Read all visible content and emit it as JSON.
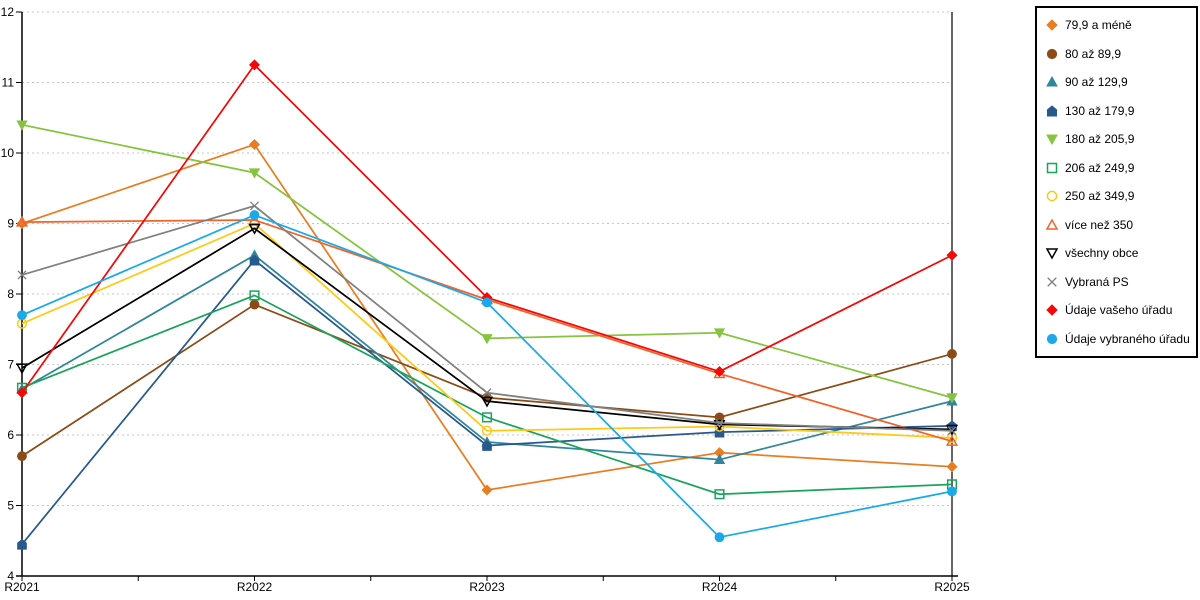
{
  "chart_data": {
    "type": "line",
    "title": "",
    "xlabel": "",
    "ylabel": "",
    "x_categories": [
      "R2021",
      "R2022",
      "R2023",
      "R2024",
      "R2025"
    ],
    "ylim": [
      4,
      12
    ],
    "y_ticks": [
      4,
      5,
      6,
      7,
      8,
      9,
      10,
      11,
      12
    ],
    "grid": "horizontal-dashed",
    "legend_position": "right",
    "series": [
      {
        "name": "79,9 a méně",
        "color": "#E87E23",
        "marker": "diamond",
        "fill": "solid",
        "values": [
          9.0,
          10.12,
          5.22,
          5.75,
          5.55
        ]
      },
      {
        "name": "80 až 89,9",
        "color": "#8C4A17",
        "marker": "circle",
        "fill": "solid",
        "values": [
          5.7,
          7.85,
          6.53,
          6.25,
          7.15
        ]
      },
      {
        "name": "90 až 129,9",
        "color": "#31859C",
        "marker": "triangle-up",
        "fill": "solid",
        "values": [
          6.65,
          8.55,
          5.9,
          5.65,
          6.48
        ]
      },
      {
        "name": "130 až 179,9",
        "color": "#27598E",
        "marker": "pentagon",
        "fill": "solid",
        "values": [
          4.45,
          8.48,
          5.85,
          6.04,
          6.13
        ]
      },
      {
        "name": "180 až 205,9",
        "color": "#86C440",
        "marker": "triangle-down",
        "fill": "solid",
        "values": [
          10.4,
          9.72,
          7.37,
          7.45,
          6.53
        ]
      },
      {
        "name": "206 až 249,9",
        "color": "#18A45A",
        "marker": "square",
        "fill": "open",
        "values": [
          6.67,
          7.98,
          6.25,
          5.16,
          5.3
        ]
      },
      {
        "name": "250 až 349,9",
        "color": "#FFC914",
        "marker": "circle",
        "fill": "open",
        "values": [
          7.58,
          9.0,
          6.06,
          6.12,
          5.96
        ]
      },
      {
        "name": "více než 350",
        "color": "#F2632A",
        "marker": "triangle-up",
        "fill": "open",
        "values": [
          9.02,
          9.05,
          7.92,
          6.87,
          5.91
        ]
      },
      {
        "name": "všechny obce",
        "color": "#000000",
        "marker": "triangle-down",
        "fill": "open",
        "values": [
          6.95,
          8.93,
          6.48,
          6.15,
          6.08
        ]
      },
      {
        "name": "Vybraná PS",
        "color": "#808080",
        "marker": "x",
        "fill": "open",
        "values": [
          8.27,
          9.25,
          6.6,
          6.17,
          6.06
        ]
      },
      {
        "name": "Údaje vašeho úřadu",
        "color": "#F40808",
        "marker": "diamond",
        "fill": "solid",
        "values": [
          6.6,
          11.25,
          7.95,
          6.9,
          8.55
        ]
      },
      {
        "name": "Údaje vybraného úřadu",
        "color": "#1BA9E8",
        "marker": "circle",
        "fill": "solid",
        "values": [
          7.7,
          9.12,
          7.88,
          4.55,
          5.2
        ]
      }
    ]
  },
  "colors": {
    "background": "#FFFFFF",
    "grid": "#C6C6C6",
    "axis": "#000000",
    "legend_border": "#000000"
  }
}
